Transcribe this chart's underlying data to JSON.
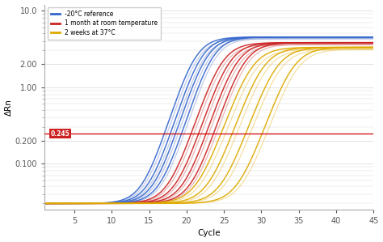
{
  "xlabel": "Cycle",
  "ylabel": "ΔRn",
  "xlim": [
    1,
    45
  ],
  "ylim_log": [
    0.025,
    12.0
  ],
  "yticks": [
    0.1,
    0.2,
    1.0,
    2.0,
    10.0
  ],
  "ytick_labels": [
    "0.100",
    "0.200",
    "1.00",
    "2.00",
    "10.0"
  ],
  "xticks": [
    5,
    10,
    15,
    20,
    25,
    30,
    35,
    40,
    45
  ],
  "threshold_y": 0.245,
  "threshold_label": "0.245",
  "threshold_color": "#cc0000",
  "threshold_bg": "#cc2222",
  "background_color": "#ffffff",
  "grid_color": "#d8d8d8",
  "blue_color": "#3366cc",
  "blue_light": "#99aadd",
  "red_color": "#cc2222",
  "red_light": "#dd8888",
  "yellow_color": "#ddaa00",
  "yellow_light": "#eecc66",
  "legend_labels": [
    "-20°C reference",
    "1 month at room temperature",
    "2 weeks at 37°C"
  ],
  "blue_curves": {
    "midpoints": [
      21.0,
      21.8,
      22.5,
      23.3
    ],
    "steepness": [
      0.75,
      0.75,
      0.75,
      0.75
    ],
    "plateau": [
      4.5,
      4.5,
      4.5,
      4.5
    ]
  },
  "blue_light_curves": {
    "midpoints": [
      21.3,
      22.1,
      22.8,
      23.6
    ],
    "steepness": [
      0.75,
      0.75,
      0.75,
      0.75
    ],
    "plateau": [
      4.3,
      4.3,
      4.3,
      4.3
    ]
  },
  "red_curves": {
    "midpoints": [
      24.5,
      25.5,
      26.5,
      27.5
    ],
    "steepness": [
      0.72,
      0.72,
      0.72,
      0.72
    ],
    "plateau": [
      3.8,
      3.8,
      3.8,
      3.8
    ]
  },
  "red_light_curves": {
    "midpoints": [
      24.8,
      25.8,
      26.8,
      27.8
    ],
    "steepness": [
      0.72,
      0.72,
      0.72,
      0.72
    ],
    "plateau": [
      3.6,
      3.6,
      3.6,
      3.6
    ]
  },
  "yellow_curves": {
    "midpoints": [
      28.5,
      30.0,
      31.8,
      34.0
    ],
    "steepness": [
      0.68,
      0.68,
      0.68,
      0.68
    ],
    "plateau": [
      3.3,
      3.3,
      3.3,
      3.3
    ]
  },
  "yellow_light_curves": {
    "midpoints": [
      29.0,
      30.5,
      32.3,
      34.5
    ],
    "steepness": [
      0.68,
      0.68,
      0.68,
      0.68
    ],
    "plateau": [
      3.1,
      3.1,
      3.1,
      3.1
    ]
  }
}
